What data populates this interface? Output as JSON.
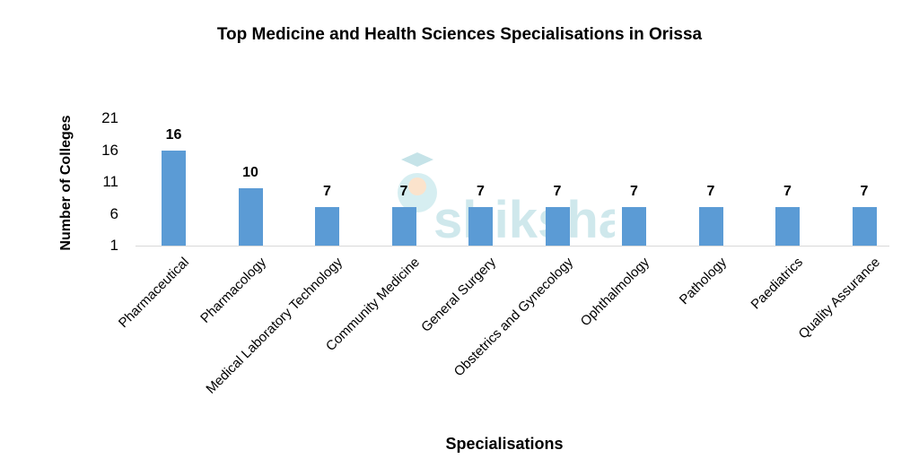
{
  "chart_data": {
    "type": "bar",
    "title": "Top Medicine and Health Sciences Specialisations in Orissa",
    "xlabel": "Specialisations",
    "ylabel": "Number of Colleges",
    "yticks": [
      "1",
      "6",
      "11",
      "16",
      "21"
    ],
    "ylim": [
      1,
      21
    ],
    "grid": false,
    "legend": null,
    "bar_color": "#5b9bd5",
    "categories": [
      "Pharmaceutical",
      "Pharmacology",
      "Medical Laboratory Technology",
      "Community Medicine",
      "General Surgery",
      "Obstetrics and Gynecology",
      "Ophthalmology",
      "Pathology",
      "Paediatrics",
      "Quality Assurance"
    ],
    "values": [
      16,
      10,
      7,
      7,
      7,
      7,
      7,
      7,
      7,
      7
    ],
    "data_labels": [
      "16",
      "10",
      "7",
      "7",
      "7",
      "7",
      "7",
      "7",
      "7",
      "7"
    ]
  },
  "watermark": {
    "text": "shiksha"
  }
}
